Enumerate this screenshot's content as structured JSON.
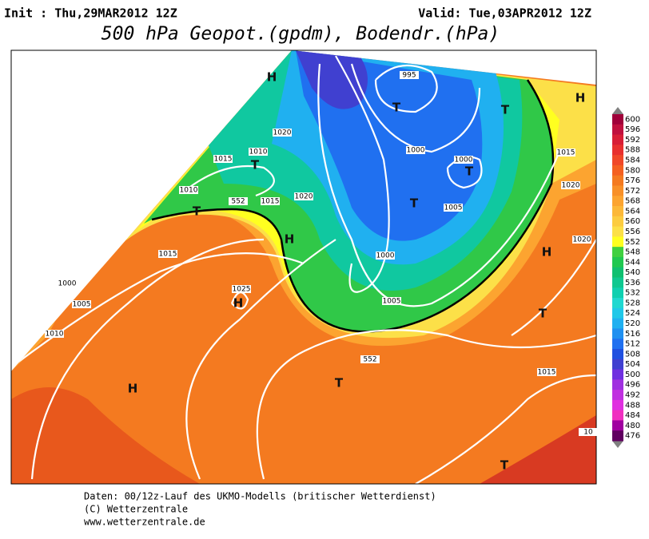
{
  "header": {
    "init": "Init : Thu,29MAR2012 12Z",
    "valid": "Valid: Tue,03APR2012 12Z",
    "title": "500 hPa Geopot.(gpdm), Bodendr.(hPa)"
  },
  "colorbar": {
    "levels": [
      600,
      596,
      592,
      588,
      584,
      580,
      576,
      572,
      568,
      564,
      560,
      556,
      552,
      548,
      544,
      540,
      536,
      532,
      528,
      524,
      520,
      516,
      512,
      508,
      504,
      500,
      496,
      492,
      488,
      484,
      480,
      476
    ],
    "colors": [
      "#a0003a",
      "#c0103e",
      "#d81e36",
      "#e8302e",
      "#f04828",
      "#f46020",
      "#f47a20",
      "#f89028",
      "#fca430",
      "#fcb838",
      "#fccc40",
      "#fce048",
      "#ffff20",
      "#40d040",
      "#20c850",
      "#10c070",
      "#10c890",
      "#10d0b0",
      "#20d8d0",
      "#20c8e8",
      "#20b0f0",
      "#2090f0",
      "#2070f0",
      "#2050e0",
      "#4040d0",
      "#7030e0",
      "#a030e0",
      "#c030e0",
      "#e030e0",
      "#f030c0",
      "#a000a0",
      "#600060"
    ]
  },
  "map": {
    "isobar_labels": [
      "995",
      "1020",
      "1010",
      "1015",
      "1000",
      "1000",
      "1015",
      "1020",
      "1010",
      "552",
      "1015",
      "1020",
      "1005",
      "1020",
      "1015",
      "1000",
      "1025",
      "1000",
      "1005",
      "1010",
      "1005",
      "552",
      "1015",
      "10"
    ],
    "centers": [
      "H",
      "T",
      "T",
      "H",
      "T",
      "T",
      "T",
      "T",
      "H",
      "H",
      "H",
      "T",
      "T",
      "H",
      "T"
    ]
  },
  "footer": {
    "lines": [
      "Daten: 00/12z-Lauf des UKMO-Modells (britischer Wetterdienst)",
      "(C) Wetterzentrale",
      "www.wetterzentrale.de"
    ]
  }
}
